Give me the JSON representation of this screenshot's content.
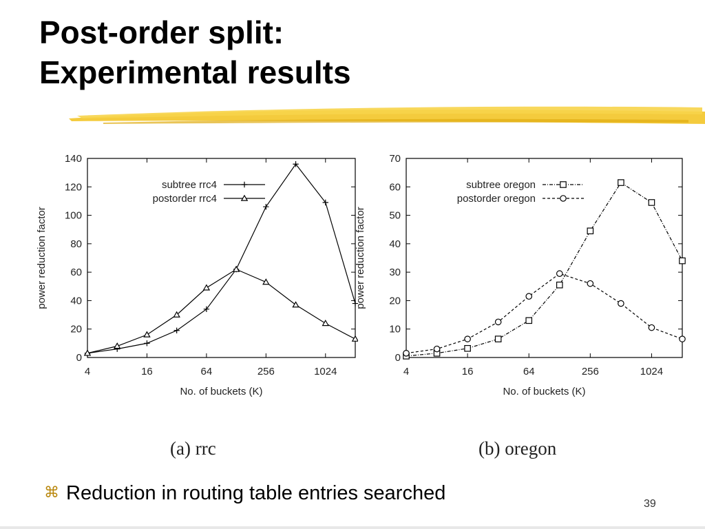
{
  "slide": {
    "title": "Post-order split:\nExperimental results",
    "bullet_icon": "command-key-icon",
    "bullet_glyph": "⌘",
    "bullet_text": "Reduction in routing table entries searched",
    "page_number": "39",
    "accent_color": "#f2c21b"
  },
  "chart_data": [
    {
      "type": "line",
      "caption": "(a) rrc",
      "xlabel": "No. of buckets (K)",
      "ylabel": "power reduction factor",
      "x_scale": "log2",
      "xlim": [
        4,
        2048
      ],
      "ylim": [
        0,
        140
      ],
      "x_ticks": [
        4,
        16,
        64,
        256,
        1024
      ],
      "x_tick_labels": [
        "4",
        "16",
        "64",
        "256",
        "1024"
      ],
      "y_ticks": [
        0,
        20,
        40,
        60,
        80,
        100,
        120,
        140
      ],
      "y_tick_labels": [
        "0",
        "20",
        "40",
        "60",
        "80",
        "100",
        "120",
        "140"
      ],
      "legend_position": "top-left",
      "grid": false,
      "series": [
        {
          "name": "subtree rrc4",
          "marker": "plus",
          "dash": "solid",
          "x": [
            4,
            8,
            16,
            32,
            64,
            128,
            256,
            512,
            1024,
            2048
          ],
          "y": [
            3,
            6,
            10,
            19,
            34,
            62,
            106,
            136,
            109,
            38
          ]
        },
        {
          "name": "postorder rrc4",
          "marker": "triangle",
          "dash": "solid",
          "x": [
            4,
            8,
            16,
            32,
            64,
            128,
            256,
            512,
            1024,
            2048
          ],
          "y": [
            3,
            8,
            16,
            30,
            49,
            62,
            53,
            37,
            24,
            13
          ]
        }
      ]
    },
    {
      "type": "line",
      "caption": "(b) oregon",
      "xlabel": "No. of buckets (K)",
      "ylabel": "power reduction factor",
      "x_scale": "log2",
      "xlim": [
        4,
        2048
      ],
      "ylim": [
        0,
        70
      ],
      "x_ticks": [
        4,
        16,
        64,
        256,
        1024
      ],
      "x_tick_labels": [
        "4",
        "16",
        "64",
        "256",
        "1024"
      ],
      "y_ticks": [
        0,
        10,
        20,
        30,
        40,
        50,
        60,
        70
      ],
      "y_tick_labels": [
        "0",
        "10",
        "20",
        "30",
        "40",
        "50",
        "60",
        "70"
      ],
      "legend_position": "top-left",
      "grid": false,
      "series": [
        {
          "name": "subtree oregon",
          "marker": "square",
          "dash": "dashdot",
          "x": [
            4,
            8,
            16,
            32,
            64,
            128,
            256,
            512,
            1024,
            2048
          ],
          "y": [
            0.5,
            1.5,
            3.2,
            6.5,
            13,
            25.5,
            44.5,
            61.5,
            54.5,
            34
          ]
        },
        {
          "name": "postorder oregon",
          "marker": "circle",
          "dash": "dash",
          "x": [
            4,
            8,
            16,
            32,
            64,
            128,
            256,
            512,
            1024,
            2048
          ],
          "y": [
            1.5,
            3,
            6.5,
            12.5,
            21.5,
            29.5,
            26,
            19,
            10.5,
            6.5
          ]
        }
      ]
    }
  ]
}
